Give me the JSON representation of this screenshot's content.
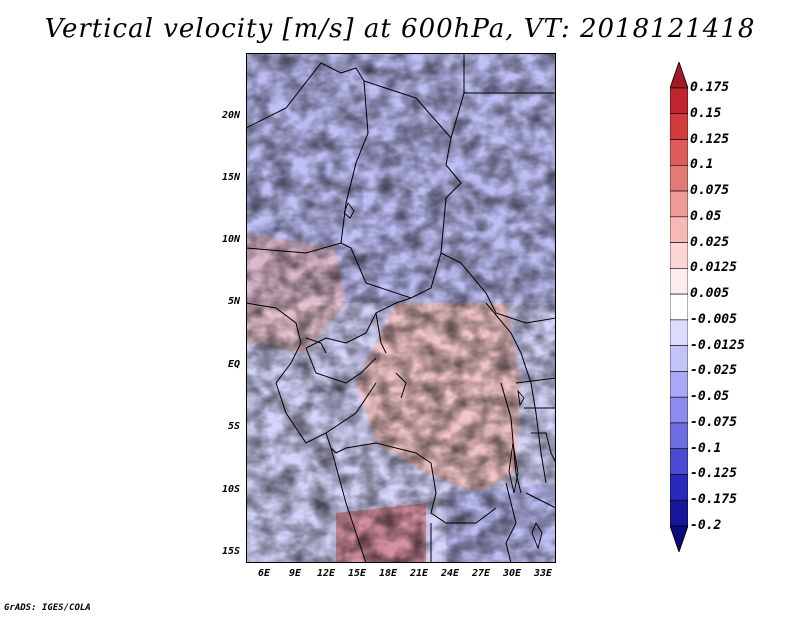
{
  "title": "Vertical velocity [m/s] at 600hPa, VT: 2018121418",
  "lat_labels": [
    "20N",
    "15N",
    "10N",
    "5N",
    "EQ",
    "5S",
    "10S",
    "15S"
  ],
  "lon_labels": [
    "6E",
    "9E",
    "12E",
    "15E",
    "18E",
    "21E",
    "24E",
    "27E",
    "30E",
    "33E"
  ],
  "colorbar": {
    "labels": [
      "0.175",
      "0.15",
      "0.125",
      "0.1",
      "0.075",
      "0.05",
      "0.025",
      "0.0125",
      "0.005",
      "-0.005",
      "-0.0125",
      "-0.025",
      "-0.05",
      "-0.075",
      "-0.1",
      "-0.125",
      "-0.175",
      "-0.2"
    ],
    "colors": [
      "#a31a26",
      "#c02630",
      "#d13c3f",
      "#df5c5c",
      "#e37a78",
      "#ee9b97",
      "#f5b9b6",
      "#fbd6d4",
      "#fdecec",
      "#ffffff",
      "#dcdcff",
      "#c3c3fa",
      "#a8a8f5",
      "#8c8cee",
      "#6f6fe2",
      "#4a4ad3",
      "#2a2ab8",
      "#16169a",
      "#0a0a7a"
    ],
    "arrow_top_color": "#a31a26",
    "arrow_bottom_color": "#0a0a7a"
  },
  "footer": "GrADS: IGES/COLA"
}
